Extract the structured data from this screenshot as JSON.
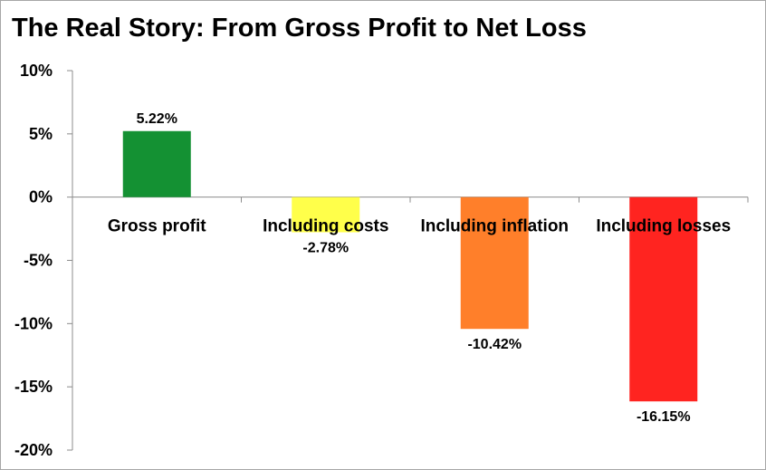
{
  "chart_data": {
    "type": "bar",
    "title": "The Real Story: From Gross Profit to Net Loss",
    "categories": [
      "Gross profit",
      "Including costs",
      "Including inflation",
      "Including losses"
    ],
    "values": [
      5.22,
      -2.78,
      -10.42,
      -16.15
    ],
    "data_labels": [
      "5.22%",
      "-2.78%",
      "-10.42%",
      "-16.15%"
    ],
    "colors": [
      "#149133",
      "#ffff4a",
      "#ff7f2a",
      "#ff2420"
    ],
    "ylim": [
      -20,
      10
    ],
    "yticks": [
      10,
      5,
      0,
      -5,
      -10,
      -15,
      -20
    ],
    "ytick_labels": [
      "10%",
      "5%",
      "0%",
      "-5%",
      "-10%",
      "-15%",
      "-20%"
    ],
    "xlabel": "",
    "ylabel": "",
    "grid": false,
    "legend": "none"
  }
}
